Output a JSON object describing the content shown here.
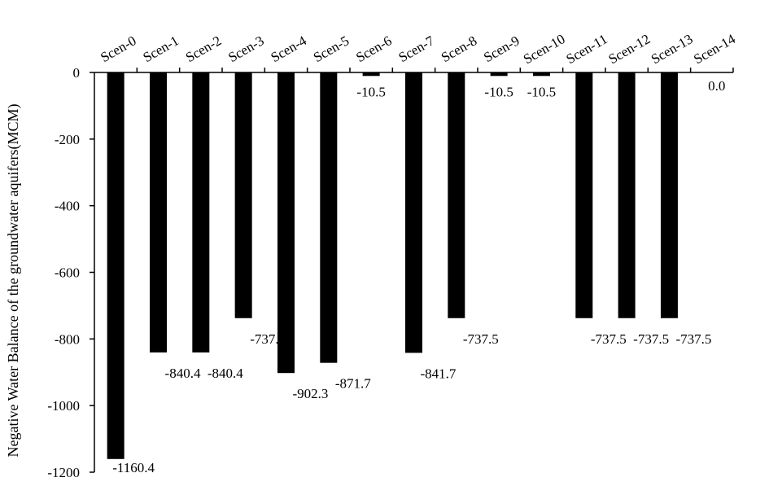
{
  "chart_data": {
    "type": "bar",
    "title": "",
    "xlabel": "",
    "ylabel": "Negative Water Balance of the groundwater aquifers(MCM)",
    "categories": [
      "Scen-0",
      "Scen-1",
      "Scen-2",
      "Scen-3",
      "Scen-4",
      "Scen-5",
      "Scen-6",
      "Scen-7",
      "Scen-8",
      "Scen-9",
      "Scen-10",
      "Scen-11",
      "Scen-12",
      "Scen-13",
      "Scen-14"
    ],
    "values": [
      -1160.4,
      -840.4,
      -840.4,
      -737.5,
      -902.3,
      -871.7,
      -10.5,
      -841.7,
      -737.5,
      -10.5,
      -10.5,
      -737.5,
      -737.5,
      -737.5,
      0.0
    ],
    "data_labels": [
      "-1160.4",
      "-840.4",
      "-840.4",
      "-737.5",
      "-902.3",
      "-871.7",
      "-10.5",
      "-841.7",
      "-737.5",
      "-10.5",
      "-10.5",
      "-737.5",
      "-737.5",
      "-737.5",
      "0.0"
    ],
    "ylim": [
      -1200,
      0
    ],
    "yticks": [
      0,
      -200,
      -400,
      -600,
      -800,
      -1000,
      -1200
    ],
    "ytick_labels": [
      "0",
      "-200",
      "-400",
      "-600",
      "-800",
      "-1000",
      "-1200"
    ],
    "bar_color": "#000000",
    "grid": false,
    "legend": "none",
    "category_axis_position": "top"
  }
}
